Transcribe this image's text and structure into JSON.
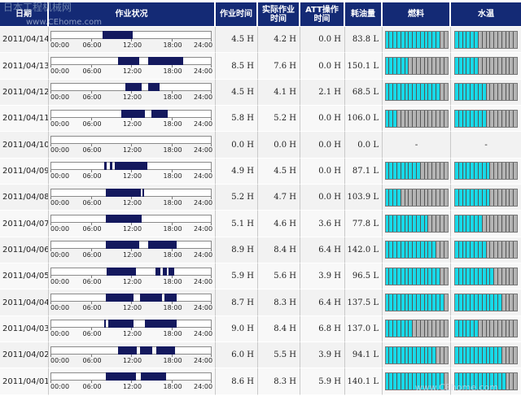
{
  "watermark": {
    "top_text": "日本工程机械网",
    "top_url": "www.CEhome.com",
    "bottom_url": "www.CEhome.com"
  },
  "header": {
    "date": "日期",
    "status": "作业状况",
    "work_time": "作业时间",
    "actual_time": "实际作业时间",
    "att_time": "ATT操作时间",
    "fuel_used": "耗油量",
    "fuel": "燃料",
    "water_temp": "水温"
  },
  "timeline_labels": [
    "00:00",
    "06:00",
    "12:00",
    "18:00",
    "24:00"
  ],
  "colors": {
    "header_bg": "#142a75",
    "bar": "#14195e",
    "gauge_on": "#18d9e8",
    "gauge_off": "#b4b4b4"
  },
  "rows": [
    {
      "date": "2011/04/14",
      "segments": [
        [
          7.8,
          12.2
        ]
      ],
      "work": "4.5 H",
      "actual": "4.2 H",
      "att": "0.0 H",
      "fuel_used": "83.8 L",
      "fuel_level": 14,
      "temp_level": 6
    },
    {
      "date": "2011/04/13",
      "segments": [
        [
          10.0,
          13.2
        ],
        [
          14.6,
          19.7
        ]
      ],
      "work": "8.5 H",
      "actual": "7.6 H",
      "att": "0.0 H",
      "fuel_used": "150.1 L",
      "fuel_level": 6,
      "temp_level": 6
    },
    {
      "date": "2011/04/12",
      "segments": [
        [
          11.2,
          13.6
        ],
        [
          14.6,
          16.2
        ]
      ],
      "work": "4.5 H",
      "actual": "4.1 H",
      "att": "2.1 H",
      "fuel_used": "68.5 L",
      "fuel_level": 14,
      "temp_level": 8
    },
    {
      "date": "2011/04/11",
      "segments": [
        [
          10.5,
          14.0
        ],
        [
          15.0,
          17.4
        ]
      ],
      "work": "5.8 H",
      "actual": "5.2 H",
      "att": "0.0 H",
      "fuel_used": "106.0 L",
      "fuel_level": 3,
      "temp_level": 8
    },
    {
      "date": "2011/04/10",
      "segments": [],
      "work": "0.0 H",
      "actual": "0.0 H",
      "att": "0.0 H",
      "fuel_used": "0.0 L",
      "fuel_level": null,
      "temp_level": null,
      "fuel_dash": "-",
      "temp_dash": "-"
    },
    {
      "date": "2011/04/09",
      "segments": [
        [
          8.0,
          8.4
        ],
        [
          8.8,
          9.2
        ],
        [
          9.6,
          14.4
        ]
      ],
      "work": "4.9 H",
      "actual": "4.5 H",
      "att": "0.0 H",
      "fuel_used": "87.1 L",
      "fuel_level": 9,
      "temp_level": 9
    },
    {
      "date": "2011/04/08",
      "segments": [
        [
          8.2,
          13.4
        ],
        [
          13.7,
          14.0
        ]
      ],
      "work": "5.2 H",
      "actual": "4.7 H",
      "att": "0.0 H",
      "fuel_used": "103.9 L",
      "fuel_level": 4,
      "temp_level": 9
    },
    {
      "date": "2011/04/07",
      "segments": [
        [
          8.2,
          13.6
        ]
      ],
      "work": "5.1 H",
      "actual": "4.6 H",
      "att": "3.6 H",
      "fuel_used": "77.8 L",
      "fuel_level": 11,
      "temp_level": 7
    },
    {
      "date": "2011/04/06",
      "segments": [
        [
          8.2,
          13.2
        ],
        [
          14.6,
          18.8
        ]
      ],
      "work": "8.9 H",
      "actual": "8.4 H",
      "att": "6.4 H",
      "fuel_used": "142.0 L",
      "fuel_level": 13,
      "temp_level": 8
    },
    {
      "date": "2011/04/05",
      "segments": [
        [
          8.4,
          12.7
        ],
        [
          15.6,
          16.4
        ],
        [
          16.7,
          17.3
        ],
        [
          17.6,
          18.4
        ]
      ],
      "work": "5.9 H",
      "actual": "5.6 H",
      "att": "3.9 H",
      "fuel_used": "96.5 L",
      "fuel_level": 14,
      "temp_level": 10
    },
    {
      "date": "2011/04/04",
      "segments": [
        [
          8.2,
          12.4
        ],
        [
          13.3,
          16.6
        ],
        [
          17.0,
          18.8
        ]
      ],
      "work": "8.7 H",
      "actual": "8.3 H",
      "att": "6.4 H",
      "fuel_used": "137.5 L",
      "fuel_level": 15,
      "temp_level": 12
    },
    {
      "date": "2011/04/03",
      "segments": [
        [
          8.0,
          8.3
        ],
        [
          8.6,
          12.4
        ],
        [
          14.1,
          18.8
        ]
      ],
      "work": "9.0 H",
      "actual": "8.4 H",
      "att": "6.8 H",
      "fuel_used": "137.0 L",
      "fuel_level": 7,
      "temp_level": 6
    },
    {
      "date": "2011/04/02",
      "segments": [
        [
          10.0,
          12.8
        ],
        [
          13.3,
          15.2
        ],
        [
          15.8,
          18.6
        ]
      ],
      "work": "6.0 H",
      "actual": "5.5 H",
      "att": "3.9 H",
      "fuel_used": "94.1 L",
      "fuel_level": 13,
      "temp_level": 12
    },
    {
      "date": "2011/04/01",
      "segments": [
        [
          8.2,
          12.7
        ],
        [
          13.4,
          17.2
        ]
      ],
      "work": "8.6 H",
      "actual": "8.3 H",
      "att": "5.9 H",
      "fuel_used": "140.1 L",
      "fuel_level": 15,
      "temp_level": 13
    }
  ]
}
